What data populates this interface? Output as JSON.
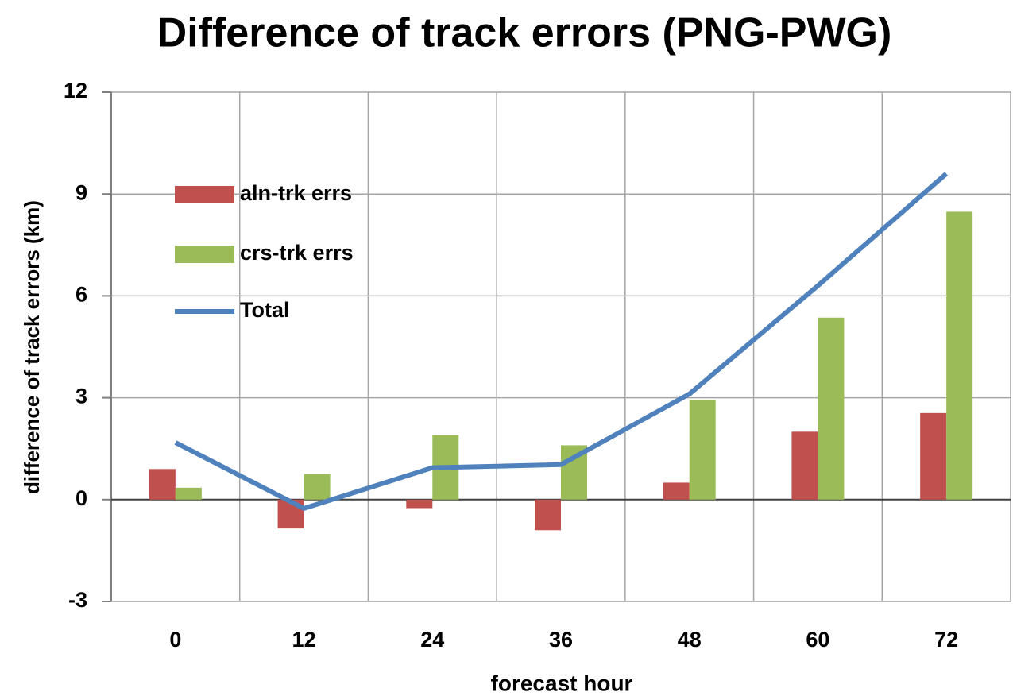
{
  "chart_data": {
    "type": "bar_line",
    "title": "Difference of track errors (PNG-PWG)",
    "x_label": "forecast hour",
    "y_label": "difference of track errors (km)",
    "categories": [
      "0",
      "12",
      "24",
      "36",
      "48",
      "60",
      "72"
    ],
    "series": [
      {
        "name": "aln-trk errs",
        "type": "bar",
        "color": "#c0504d",
        "values": [
          0.9,
          -0.85,
          -0.25,
          -0.9,
          0.5,
          2.0,
          2.55
        ]
      },
      {
        "name": "crs-trk errs",
        "type": "bar",
        "color": "#9bbb59",
        "values": [
          0.35,
          0.75,
          1.9,
          1.6,
          2.93,
          5.36,
          8.48
        ]
      },
      {
        "name": "Total",
        "type": "line",
        "color": "#4f81bd",
        "values": [
          1.68,
          -0.26,
          0.94,
          1.03,
          3.11,
          6.3,
          9.6
        ]
      }
    ],
    "ylim": [
      -3,
      12
    ],
    "yticks": [
      -3,
      0,
      3,
      6,
      9,
      12
    ],
    "grid": true,
    "legend": "upper left"
  }
}
